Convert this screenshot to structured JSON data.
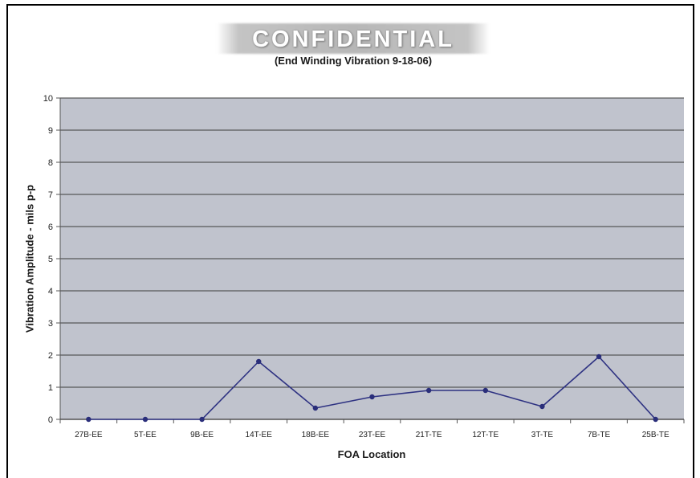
{
  "page": {
    "stamp": "CONFIDENTIAL"
  },
  "chart_data": {
    "type": "line",
    "title": "",
    "subtitle": "(End Winding Vibration 9-18-06)",
    "xlabel": "FOA Location",
    "ylabel": "Vibration Amplitude - mils p-p",
    "categories": [
      "27B-EE",
      "5T-EE",
      "9B-EE",
      "14T-EE",
      "18B-EE",
      "23T-EE",
      "21T-TE",
      "12T-TE",
      "3T-TE",
      "7B-TE",
      "25B-TE"
    ],
    "series": [
      {
        "values": [
          0,
          0,
          0,
          1.8,
          0.35,
          0.7,
          0.9,
          0.9,
          0.4,
          1.95,
          0
        ]
      }
    ],
    "ylim": [
      0,
      10
    ],
    "yticks": [
      0,
      1,
      2,
      3,
      4,
      5,
      6,
      7,
      8,
      9,
      10
    ],
    "grid": true,
    "legend": "none",
    "colors": {
      "plot_background": "#c0c3cd",
      "gridline": "#3c3c3c",
      "line": "#2e3282",
      "marker": "#2a2e7a"
    }
  }
}
